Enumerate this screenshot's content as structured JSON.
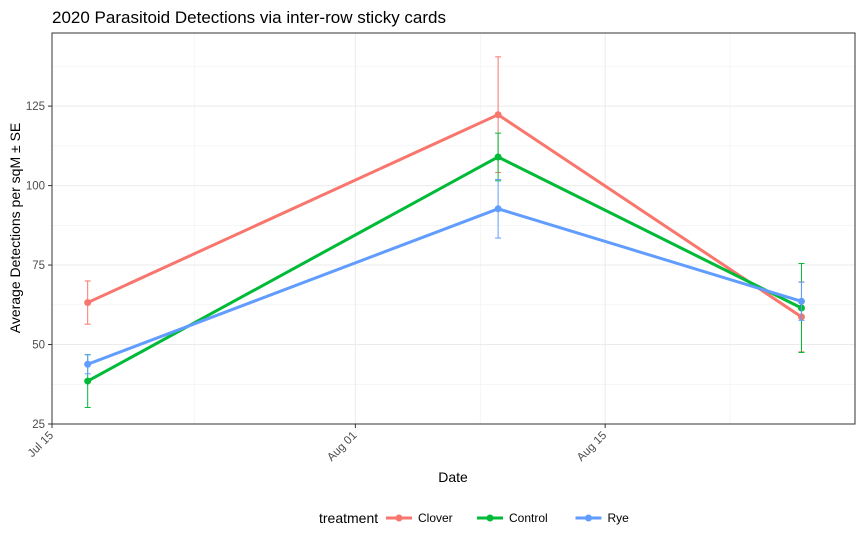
{
  "chart_data": {
    "type": "line",
    "title": "2020 Parasitoid Detections via inter-row sticky cards",
    "xlabel": "Date",
    "ylabel": "Average Detections per sqM ± SE",
    "x_type": "date",
    "x": [
      "2020-07-17",
      "2020-08-09",
      "2020-08-26"
    ],
    "xlim": [
      "2020-07-15",
      "2020-08-29"
    ],
    "ylim": [
      25,
      148
    ],
    "x_ticks": [
      {
        "date": "2020-07-15",
        "label": "Jul 15"
      },
      {
        "date": "2020-08-01",
        "label": "Aug 01"
      },
      {
        "date": "2020-08-15",
        "label": "Aug 15"
      }
    ],
    "y_ticks": [
      25,
      50,
      75,
      100,
      125
    ],
    "grid": true,
    "legend": {
      "title": "treatment",
      "position": "bottom"
    },
    "series": [
      {
        "name": "Clover",
        "color": "#F8766D",
        "values": [
          63.2,
          122.3,
          58.7
        ],
        "se": [
          6.8,
          18.2,
          11.0
        ]
      },
      {
        "name": "Control",
        "color": "#00BA38",
        "values": [
          38.5,
          109.0,
          61.5
        ],
        "se": [
          8.3,
          7.5,
          14.0
        ]
      },
      {
        "name": "Rye",
        "color": "#619CFF",
        "values": [
          43.8,
          92.7,
          63.6
        ],
        "se": [
          3.0,
          9.2,
          6.0
        ]
      }
    ]
  }
}
